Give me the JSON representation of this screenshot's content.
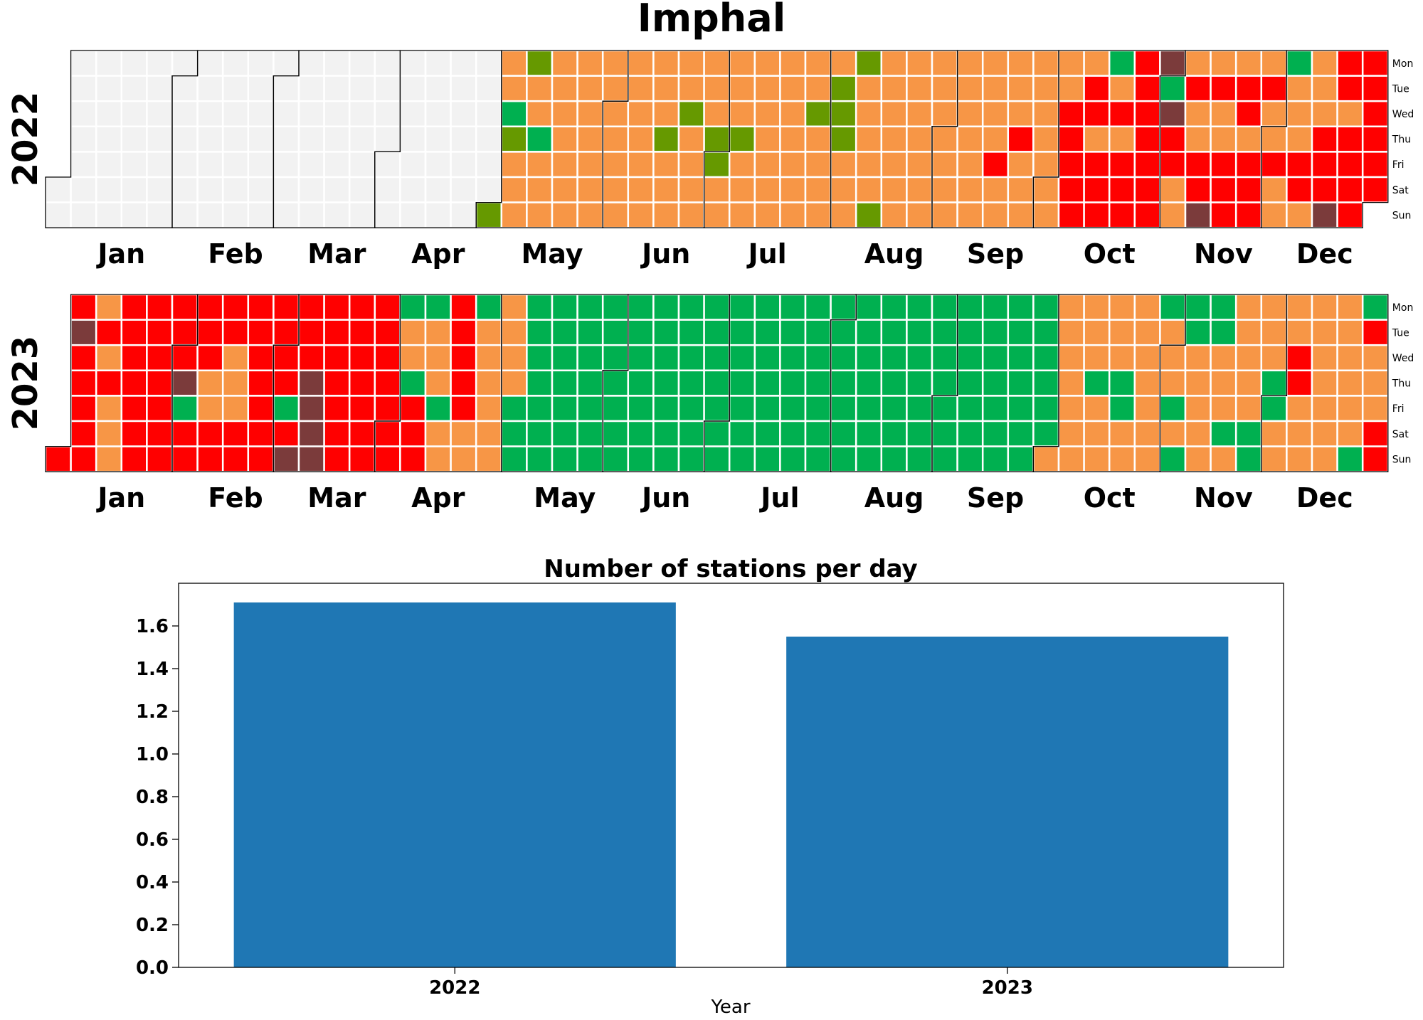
{
  "chart_data": [
    {
      "type": "heatmap",
      "subtype": "calendar",
      "title": "Imphal",
      "years": [
        {
          "year": "2022",
          "days_present_from": "2022-04-30",
          "months": [
            "Jan",
            "Feb",
            "Mar",
            "Apr",
            "May",
            "Jun",
            "Jul",
            "Aug",
            "Sep",
            "Oct",
            "Nov",
            "Dec"
          ],
          "weekdays": [
            "Mon",
            "Tue",
            "Wed",
            "Thu",
            "Fri",
            "Sat",
            "Sun"
          ],
          "monthly_categories": [
            "none",
            "none",
            "none",
            "none",
            "moderate",
            "moderate",
            "moderate",
            "moderate",
            "moderate",
            "poor",
            "poor",
            "poor"
          ],
          "exceptions": {
            "2022-05-01": "satisfactory",
            "2022-05-04": "good",
            "2022-05-05": "satisfactory",
            "2022-05-09": "satisfactory",
            "2022-05-12": "good",
            "2022-06-16": "satisfactory",
            "2022-06-22": "satisfactory",
            "2022-06-30": "satisfactory",
            "2022-07-01": "satisfactory",
            "2022-07-07": "satisfactory",
            "2022-07-27": "satisfactory",
            "2022-08-02": "satisfactory",
            "2022-08-03": "satisfactory",
            "2022-08-04": "satisfactory",
            "2022-08-08": "satisfactory",
            "2022-08-14": "satisfactory",
            "2022-09-16": "poor",
            "2022-09-22": "poor",
            "2022-10-01": "moderate",
            "2022-10-02": "moderate",
            "2022-10-03": "moderate",
            "2022-10-04": "moderate",
            "2022-10-05": "poor",
            "2022-10-06": "poor",
            "2022-10-10": "moderate",
            "2022-10-13": "moderate",
            "2022-10-17": "good",
            "2022-10-18": "moderate",
            "2022-10-20": "moderate",
            "2022-10-31": "very_poor",
            "2022-11-01": "good",
            "2022-11-02": "very_poor",
            "2022-11-05": "moderate",
            "2022-11-06": "moderate",
            "2022-11-07": "moderate",
            "2022-11-09": "moderate",
            "2022-11-10": "moderate",
            "2022-11-13": "very_poor",
            "2022-11-14": "moderate",
            "2022-11-16": "moderate",
            "2022-11-17": "moderate",
            "2022-11-21": "moderate",
            "2022-11-24": "moderate",
            "2022-11-28": "moderate",
            "2022-11-30": "moderate",
            "2022-12-01": "moderate",
            "2022-12-03": "moderate",
            "2022-12-04": "moderate",
            "2022-12-05": "good",
            "2022-12-06": "moderate",
            "2022-12-07": "moderate",
            "2022-12-08": "moderate",
            "2022-12-11": "moderate",
            "2022-12-12": "moderate",
            "2022-12-13": "moderate",
            "2022-12-14": "moderate",
            "2022-12-18": "very_poor",
            "2022-12-21": "moderate"
          }
        },
        {
          "year": "2023",
          "days_present_from": "2023-01-01",
          "months": [
            "Jan",
            "Feb",
            "Mar",
            "Apr",
            "May",
            "Jun",
            "Jul",
            "Aug",
            "Sep",
            "Oct",
            "Nov",
            "Dec"
          ],
          "weekdays": [
            "Mon",
            "Tue",
            "Wed",
            "Thu",
            "Fri",
            "Sat",
            "Sun"
          ],
          "monthly_categories": [
            "poor",
            "poor",
            "poor",
            "moderate",
            "good",
            "good",
            "good",
            "good",
            "good",
            "moderate",
            "moderate",
            "moderate"
          ],
          "exceptions": {
            "2023-01-03": "very_poor",
            "2023-01-09": "moderate",
            "2023-01-11": "moderate",
            "2023-01-13": "moderate",
            "2023-01-14": "moderate",
            "2023-01-15": "moderate",
            "2023-02-02": "very_poor",
            "2023-02-03": "good",
            "2023-02-09": "moderate",
            "2023-02-10": "moderate",
            "2023-02-15": "moderate",
            "2023-02-16": "moderate",
            "2023-02-17": "moderate",
            "2023-03-03": "good",
            "2023-03-05": "very_poor",
            "2023-03-09": "very_poor",
            "2023-03-10": "very_poor",
            "2023-03-11": "very_poor",
            "2023-03-12": "very_poor",
            "2023-04-01": "poor",
            "2023-04-02": "poor",
            "2023-04-03": "good",
            "2023-04-06": "good",
            "2023-04-07": "poor",
            "2023-04-08": "poor",
            "2023-04-09": "poor",
            "2023-04-10": "good",
            "2023-04-14": "good",
            "2023-04-17": "poor",
            "2023-04-18": "poor",
            "2023-04-19": "poor",
            "2023-04-20": "poor",
            "2023-04-21": "poor",
            "2023-04-22": "moderate",
            "2023-04-24": "good",
            "2023-05-01": "moderate",
            "2023-05-02": "moderate",
            "2023-05-03": "moderate",
            "2023-05-04": "moderate",
            "2023-10-12": "good",
            "2023-10-19": "good",
            "2023-10-20": "good",
            "2023-10-30": "good",
            "2023-11-03": "good",
            "2023-11-05": "good",
            "2023-11-06": "good",
            "2023-11-07": "good",
            "2023-11-13": "good",
            "2023-11-14": "good",
            "2023-11-18": "good",
            "2023-11-25": "good",
            "2023-11-26": "good",
            "2023-11-30": "good",
            "2023-12-01": "good",
            "2023-12-06": "poor",
            "2023-12-07": "poor",
            "2023-12-24": "good",
            "2023-12-25": "good",
            "2023-12-26": "poor",
            "2023-12-30": "poor",
            "2023-12-31": "poor"
          }
        }
      ],
      "colors": {
        "none": "#f2f2f2",
        "good": "#00b050",
        "satisfactory": "#669900",
        "moderate": "#f79646",
        "poor": "#ff0000",
        "very_poor": "#7b3b3b"
      }
    },
    {
      "type": "bar",
      "title": "Number of stations per day",
      "categories": [
        "2022",
        "2023"
      ],
      "values": [
        1.71,
        1.55
      ],
      "xlabel": "Year",
      "ylabel": "",
      "ylim": [
        0,
        1.8
      ],
      "yticks": [
        "0.0",
        "0.2",
        "0.4",
        "0.6",
        "0.8",
        "1.0",
        "1.2",
        "1.4",
        "1.6"
      ],
      "bar_color": "#1f77b4",
      "grid": false
    }
  ]
}
